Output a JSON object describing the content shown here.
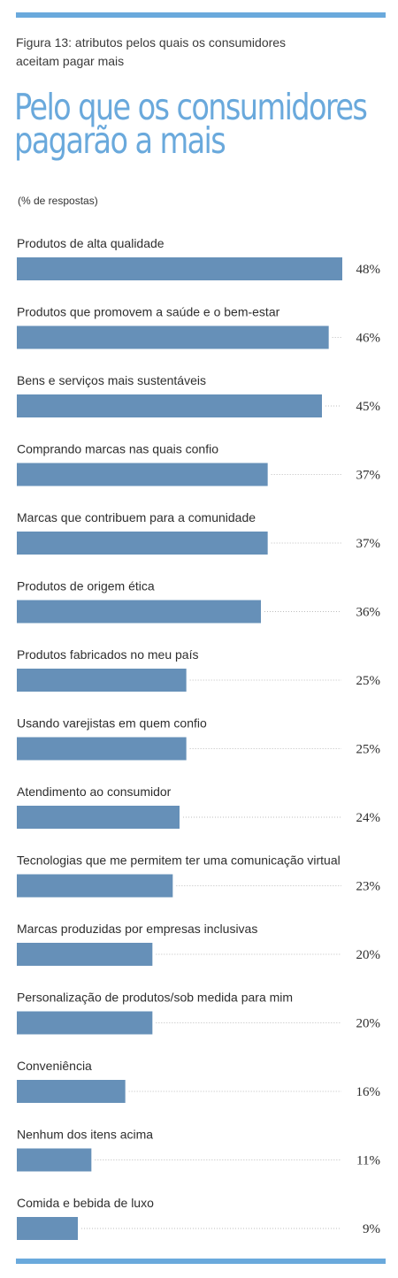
{
  "caption": "Figura 13: atributos pelos quais os consumidores\naceitam pagar mais",
  "title": "Pelo que os consumidores\npagarão a mais",
  "subtitle": "(% de respostas)",
  "colors": {
    "accent": "#6aa9dc",
    "bar": "#6690b8"
  },
  "chart_data": {
    "type": "bar",
    "orientation": "horizontal",
    "unit": "%",
    "xlim": [
      0,
      48
    ],
    "categories": [
      "Produtos de alta qualidade",
      "Produtos que promovem a saúde e o bem-estar",
      "Bens e serviços mais sustentáveis",
      "Comprando marcas nas quais confio",
      "Marcas que contribuem para a comunidade",
      "Produtos de origem ética",
      "Produtos fabricados no meu país",
      "Usando varejistas em quem confio",
      "Atendimento ao consumidor",
      "Tecnologias que me permitem ter uma comunicação virtual",
      "Marcas produzidas por empresas inclusivas",
      "Personalização de produtos/sob medida para mim",
      "Conveniência",
      "Nenhum dos itens acima",
      "Comida e bebida de luxo"
    ],
    "values": [
      48,
      46,
      45,
      37,
      37,
      36,
      25,
      25,
      24,
      23,
      20,
      20,
      16,
      11,
      9
    ],
    "value_labels": [
      "48%",
      "46%",
      "45%",
      "37%",
      "37%",
      "36%",
      "25%",
      "25%",
      "24%",
      "23%",
      "20%",
      "20%",
      "16%",
      "11%",
      "9%"
    ]
  }
}
